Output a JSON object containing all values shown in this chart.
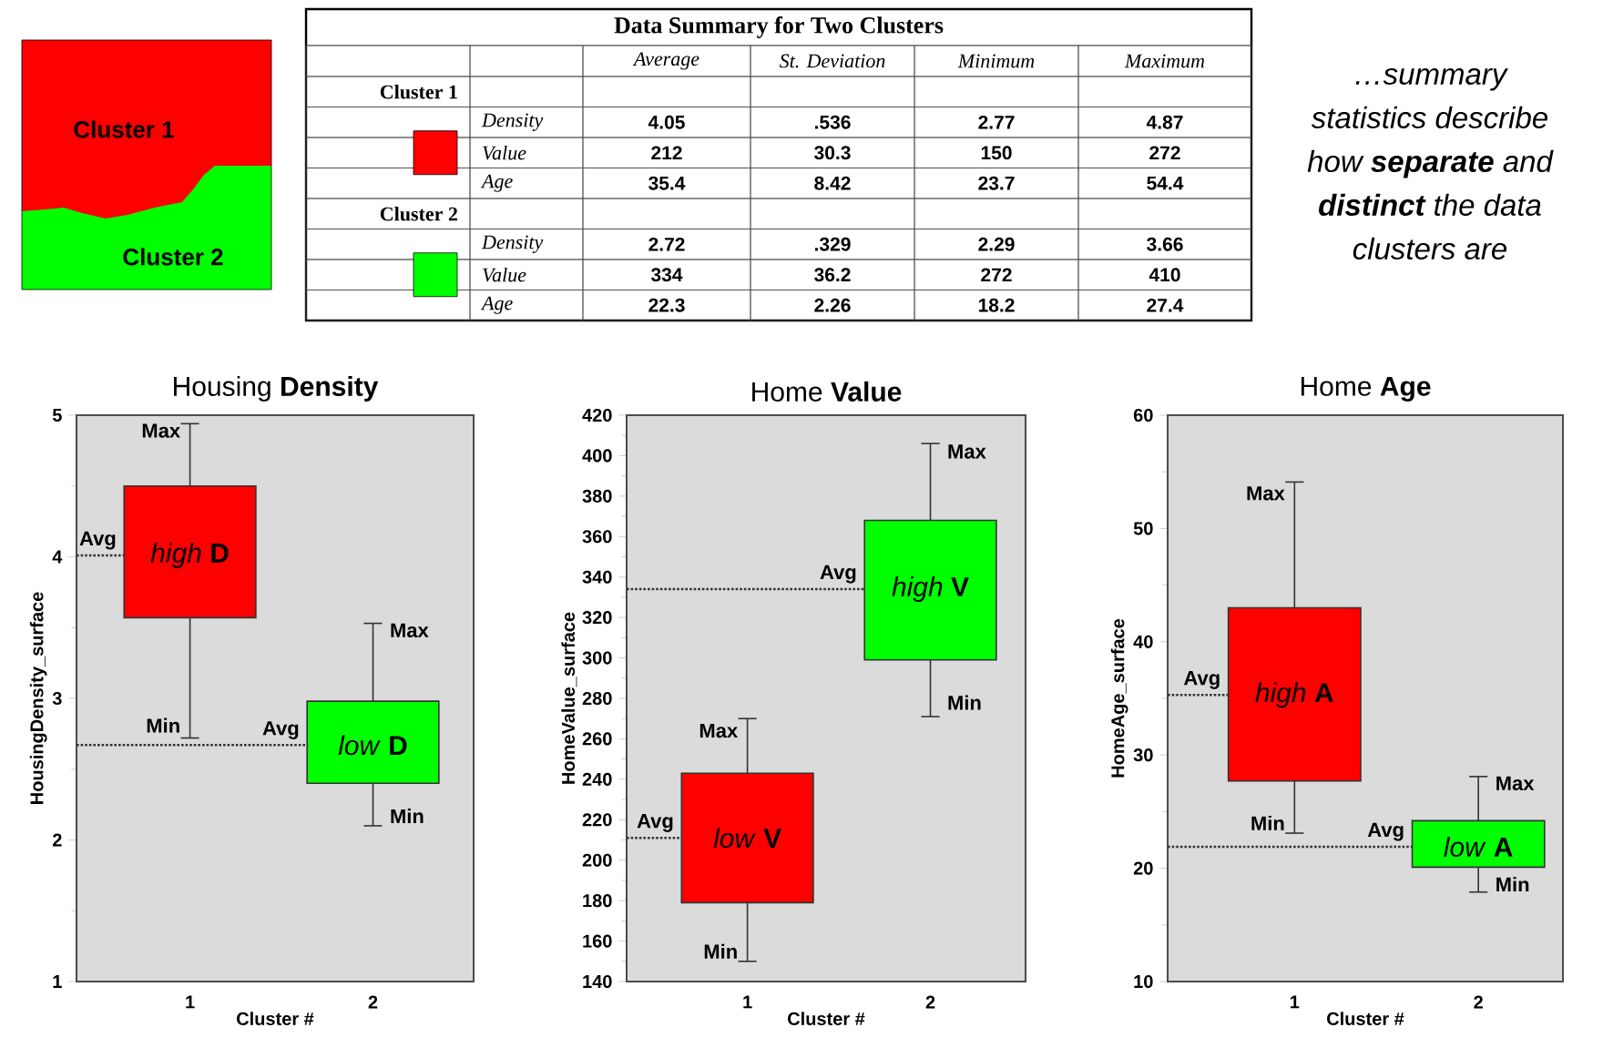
{
  "chart_data": [
    {
      "type": "other",
      "annotations": [
        "Cluster 1",
        "Cluster 2"
      ]
    },
    {
      "type": "other",
      "title": "Data Summary for Two Clusters",
      "categories": [
        "Average",
        "St. Deviation",
        "Minimum",
        "Maximum"
      ],
      "y_categories": [
        "Cluster 1",
        "Density",
        "Value",
        "Age",
        "Cluster 2",
        "Density",
        "Value",
        "Age"
      ],
      "cell_labels": [
        [
          null,
          null,
          null,
          null
        ],
        [
          "4.05",
          ".536",
          "2.77",
          "4.87"
        ],
        [
          "212",
          "30.3",
          "150",
          "272"
        ],
        [
          "35.4",
          "8.42",
          "23.7",
          "54.4"
        ],
        [
          null,
          null,
          null,
          null
        ],
        [
          "2.72",
          ".329",
          "2.29",
          "3.66"
        ],
        [
          "334",
          "36.2",
          "272",
          "410"
        ],
        [
          "22.3",
          "2.26",
          "18.2",
          "27.4"
        ]
      ]
    },
    {
      "type": "other",
      "annotations": [
        "…summary statistics describe how **separate** and **distinct** the data clusters are"
      ]
    },
    {
      "type": "box",
      "title": "Housing **Density**",
      "xlabel": "Cluster #",
      "ylabel": "HousingDensity_surface",
      "categories": [
        "1",
        "2"
      ],
      "colors": [
        "#ff0000",
        "#00ff00"
      ],
      "ylim": [
        1,
        5
      ],
      "yticks": [
        1,
        2,
        3,
        4,
        5
      ],
      "boxes": [
        {
          "low": 2.72,
          "q1": 3.57,
          "q3": 4.5,
          "high": 4.94
        },
        {
          "low": 2.1,
          "q1": 2.4,
          "q3": 2.98,
          "high": 3.53
        }
      ],
      "ref_lines": [
        {
          "axis": "y",
          "value": 4.01,
          "label": "Avg",
          "line_style": "dotted"
        },
        {
          "axis": "y",
          "value": 2.67,
          "label": "Avg",
          "line_style": "dotted"
        }
      ],
      "annotations": [
        {
          "text": "Max",
          "x": "1",
          "y": 4.89
        },
        {
          "text": "Min",
          "x": "1",
          "y": 2.81
        },
        "*high* **D**",
        {
          "text": "Max",
          "x": "2",
          "y": 3.48
        },
        {
          "text": "Min",
          "x": "2",
          "y": 2.17
        },
        "*low* **D**"
      ]
    },
    {
      "type": "box",
      "title": "Home **Value**",
      "xlabel": "Cluster #",
      "ylabel": "HomeValue_surface",
      "categories": [
        "1",
        "2"
      ],
      "colors": [
        "#ff0000",
        "#00ff00"
      ],
      "ylim": [
        140,
        420
      ],
      "yticks": [
        140,
        160,
        180,
        200,
        220,
        240,
        260,
        280,
        300,
        320,
        340,
        360,
        380,
        400,
        420
      ],
      "boxes": [
        {
          "low": 150,
          "q1": 179,
          "q3": 243,
          "high": 270
        },
        {
          "low": 271,
          "q1": 299,
          "q3": 368,
          "high": 406
        }
      ],
      "ref_lines": [
        {
          "axis": "y",
          "value": 211,
          "label": "Avg",
          "line_style": "dotted"
        },
        {
          "axis": "y",
          "value": 334,
          "label": "Avg",
          "line_style": "dotted"
        }
      ],
      "annotations": [
        {
          "text": "Max",
          "x": "1",
          "y": 264
        },
        {
          "text": "Min",
          "x": "1",
          "y": 155
        },
        "*low* **V**",
        {
          "text": "Max",
          "x": "2",
          "y": 402
        },
        {
          "text": "Min",
          "x": "2",
          "y": 278
        },
        "*high* **V**"
      ]
    },
    {
      "type": "box",
      "title": "Home **Age**",
      "xlabel": "Cluster #",
      "ylabel": "HomeAge_surface",
      "categories": [
        "1",
        "2"
      ],
      "colors": [
        "#ff0000",
        "#00ff00"
      ],
      "ylim": [
        10,
        60
      ],
      "yticks": [
        10,
        20,
        30,
        40,
        50,
        60
      ],
      "boxes": [
        {
          "low": 23.1,
          "q1": 27.7,
          "q3": 43,
          "high": 54.1
        },
        {
          "low": 17.9,
          "q1": 20.1,
          "q3": 24.2,
          "high": 28.1
        }
      ],
      "ref_lines": [
        {
          "axis": "y",
          "value": 35.3,
          "label": "Avg",
          "line_style": "dotted"
        },
        {
          "axis": "y",
          "value": 21.9,
          "label": "Avg",
          "line_style": "dotted"
        }
      ],
      "annotations": [
        {
          "text": "Max",
          "x": "1",
          "y": 53.1
        },
        {
          "text": "Min",
          "x": "1",
          "y": 24
        },
        "*high* **A**",
        {
          "text": "Max",
          "x": "2",
          "y": 27.5
        },
        {
          "text": "Min",
          "x": "2",
          "y": 18.6
        },
        "*low* **A**"
      ]
    }
  ]
}
